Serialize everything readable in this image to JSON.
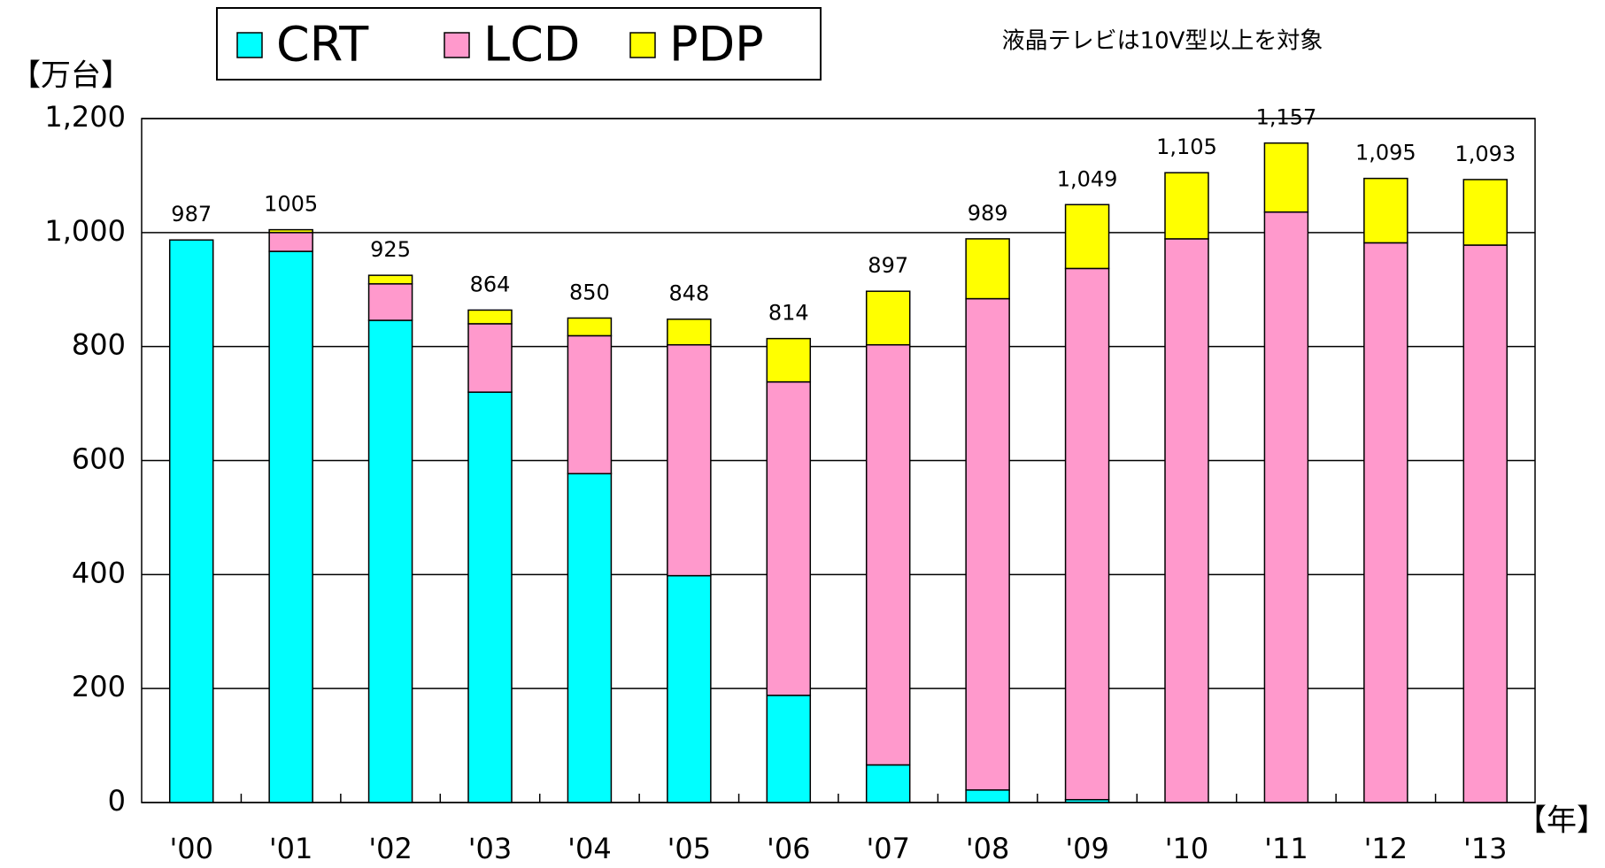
{
  "chart_data": {
    "type": "stacked_bar",
    "y_axis_label": "【万台】",
    "x_axis_label": "【年】",
    "annotation": "液晶テレビは10V型以上を対象",
    "categories": [
      "'00",
      "'01",
      "'02",
      "'03",
      "'04",
      "'05",
      "'06",
      "'07",
      "'08",
      "'09",
      "'10",
      "'11",
      "'12",
      "'13"
    ],
    "series": [
      {
        "name": "CRT",
        "color": "#00ffff",
        "values": [
          987,
          967,
          846,
          720,
          577,
          398,
          188,
          66,
          22,
          5,
          0,
          0,
          0,
          0
        ]
      },
      {
        "name": "LCD",
        "color": "#ff99cc",
        "values": [
          0,
          33,
          64,
          120,
          242,
          405,
          550,
          737,
          862,
          932,
          989,
          1036,
          982,
          978
        ]
      },
      {
        "name": "PDP",
        "color": "#ffff00",
        "values": [
          0,
          5,
          15,
          24,
          31,
          45,
          76,
          94,
          105,
          112,
          116,
          121,
          113,
          115
        ]
      }
    ],
    "total_labels": [
      "987",
      "1005",
      "925",
      "864",
      "850",
      "848",
      "814",
      "897",
      "989",
      "1,049",
      "1,105",
      "1,157",
      "1,095",
      "1,093"
    ],
    "ylim": [
      0,
      1200
    ],
    "yticks": [
      0,
      200,
      400,
      600,
      800,
      {
        "value": 1000,
        "label": "1,000"
      },
      {
        "value": 1200,
        "label": "1,200"
      }
    ],
    "grid": true
  }
}
